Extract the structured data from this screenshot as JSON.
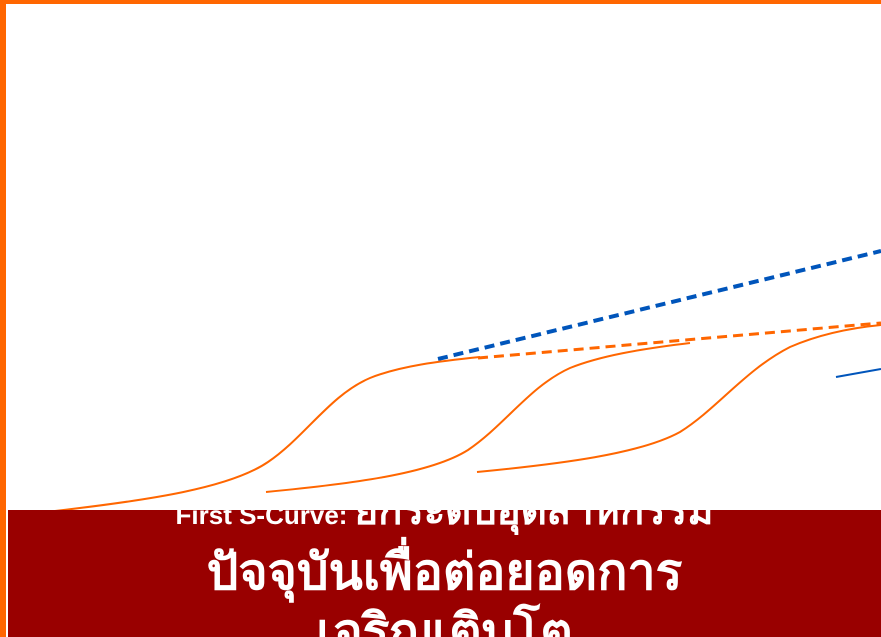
{
  "colors": {
    "frame": "#ff6600",
    "orange_curve": "#ff6600",
    "blue_line": "#0055bb",
    "banner_bg": "#990000",
    "banner_text": "#ffffff"
  },
  "banner": {
    "line1_en": "First S-Curve: ",
    "line1_th": "ยกระดับอุตสาหกรรม",
    "line2": "ปัจจุบันเพื่อต่อยอดการ",
    "line3": "เจริญเติบโต"
  }
}
